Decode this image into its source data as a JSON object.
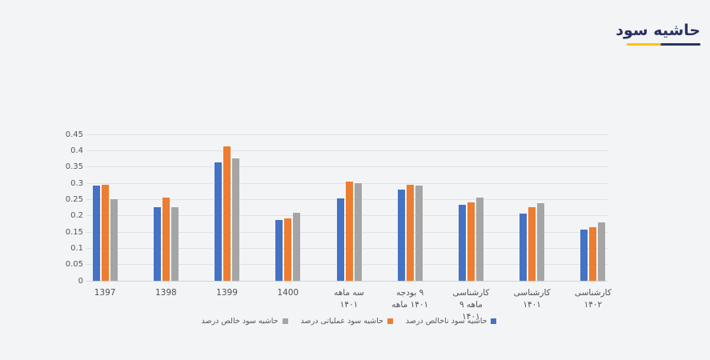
{
  "header": {
    "title": "حاشیه سود",
    "title_color": "#2a3160",
    "accent_yellow": "#fdc211",
    "accent_navy": "#2b3467"
  },
  "colors": {
    "page_background": "#f3f4f6",
    "gridline": "#e0e1e5",
    "series_blue": "#4472C4",
    "series_orange": "#ED7D31",
    "series_gray": "#A5A5A5"
  },
  "chart_data": {
    "type": "bar",
    "title": "حاشیه سود",
    "categories": [
      {
        "lines": [
          "1397"
        ]
      },
      {
        "lines": [
          "1398"
        ]
      },
      {
        "lines": [
          "1399"
        ]
      },
      {
        "lines": [
          "1400"
        ]
      },
      {
        "lines": [
          "سه ماهه",
          "۱۴۰۱"
        ]
      },
      {
        "lines": [
          "بودجه‎ ۹",
          "ماهه‎ ۱۴۰۱"
        ]
      },
      {
        "lines": [
          "کارشناسی",
          "۹‎ ماهه",
          "۱۴۰۱"
        ]
      },
      {
        "lines": [
          "کارشناسی",
          "۱۴۰۱"
        ]
      },
      {
        "lines": [
          "کارشناسی",
          "۱۴۰۲"
        ]
      }
    ],
    "series": [
      {
        "key": "gross-margin",
        "name": "حاشیه سود ناخالص درصد",
        "color": "#4472C4",
        "values": [
          0.293,
          0.226,
          0.363,
          0.186,
          0.254,
          0.28,
          0.233,
          0.207,
          0.157
        ]
      },
      {
        "key": "operating-margin",
        "name": "حاشیه سود عملیاتی درصد",
        "color": "#ED7D31",
        "values": [
          0.296,
          0.256,
          0.413,
          0.191,
          0.306,
          0.296,
          0.242,
          0.226,
          0.166
        ]
      },
      {
        "key": "net-margin",
        "name": "حاشیه سود خالص درصد",
        "color": "#A5A5A5",
        "values": [
          0.25,
          0.227,
          0.377,
          0.209,
          0.301,
          0.293,
          0.256,
          0.239,
          0.18
        ]
      }
    ],
    "ylim": [
      0,
      0.45
    ],
    "yticks": [
      "0",
      "0.05",
      "0.1",
      "0.15",
      "0.2",
      "0.25",
      "0.3",
      "0.35",
      "0.4",
      "0.45"
    ],
    "grid": true,
    "legend_position": "bottom",
    "legend_order_ltr": [
      "net-margin",
      "operating-margin",
      "gross-margin"
    ]
  }
}
